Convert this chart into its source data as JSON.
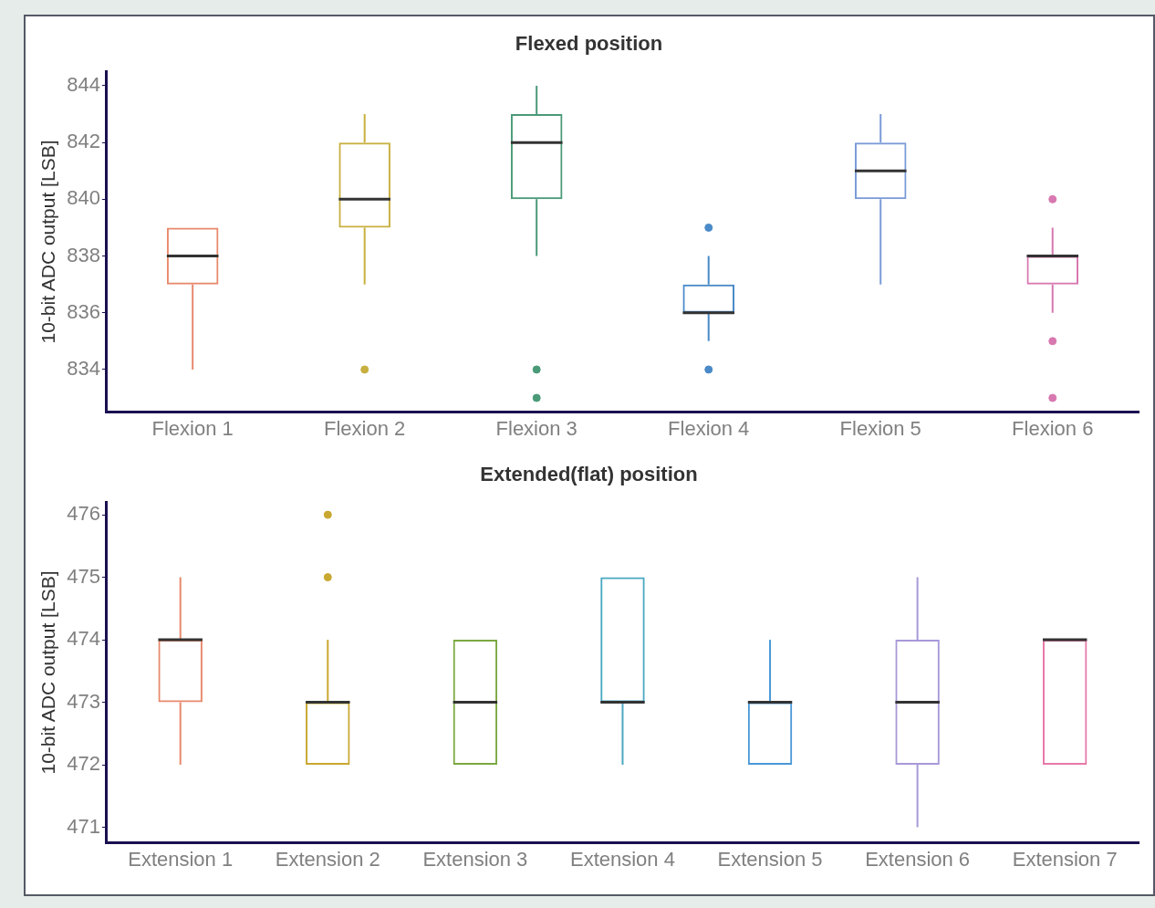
{
  "chart_data": [
    {
      "type": "box",
      "title": "Flexed position",
      "ylabel": "10-bit ADC output [LSB]",
      "categories": [
        "Flexion 1",
        "Flexion 2",
        "Flexion 3",
        "Flexion 4",
        "Flexion 5",
        "Flexion 6"
      ],
      "ylim": [
        832.5,
        844.5
      ],
      "yticks": [
        834,
        836,
        838,
        840,
        842,
        844
      ],
      "grid": false,
      "legend": false,
      "colors": [
        "#e8896c",
        "#c8b040",
        "#4a9a78",
        "#4a8ac8",
        "#7a9ad8",
        "#d878b0"
      ],
      "boxes": [
        {
          "low": 834,
          "q1": 837,
          "median": 838,
          "q3": 839,
          "high": 839
        },
        {
          "low": 837,
          "q1": 839,
          "median": 840,
          "q3": 842,
          "high": 843,
          "outliers": [
            834
          ]
        },
        {
          "low": 838,
          "q1": 840,
          "median": 842,
          "q3": 843,
          "high": 844,
          "outliers": [
            834,
            833
          ]
        },
        {
          "low": 835,
          "q1": 836,
          "median": 836,
          "q3": 837,
          "high": 838,
          "outliers": [
            839,
            834
          ]
        },
        {
          "low": 837,
          "q1": 840,
          "median": 841,
          "q3": 842,
          "high": 843
        },
        {
          "low": 836,
          "q1": 837,
          "median": 838,
          "q3": 838,
          "high": 839,
          "outliers": [
            840,
            835,
            833
          ]
        }
      ]
    },
    {
      "type": "box",
      "title": "Extended(flat) position",
      "ylabel": "10-bit ADC output [LSB]",
      "categories": [
        "Extension 1",
        "Extension 2",
        "Extension 3",
        "Extension 4",
        "Extension 5",
        "Extension 6",
        "Extension 7"
      ],
      "ylim": [
        470.75,
        476.2
      ],
      "yticks": [
        471,
        472,
        473,
        474,
        475,
        476
      ],
      "grid": false,
      "legend": false,
      "colors": [
        "#e8896c",
        "#c8a830",
        "#7aa840",
        "#4aa8c0",
        "#4a98d8",
        "#a898d8",
        "#e878a8"
      ],
      "boxes": [
        {
          "low": 472,
          "q1": 473,
          "median": 474,
          "q3": 474,
          "high": 475
        },
        {
          "low": 472,
          "q1": 472,
          "median": 473,
          "q3": 473,
          "high": 474,
          "outliers": [
            476,
            475
          ]
        },
        {
          "low": 472,
          "q1": 472,
          "median": 473,
          "q3": 474,
          "high": 474
        },
        {
          "low": 472,
          "q1": 473,
          "median": 473,
          "q3": 475,
          "high": 475
        },
        {
          "low": 472,
          "q1": 472,
          "median": 473,
          "q3": 473,
          "high": 474
        },
        {
          "low": 471,
          "q1": 472,
          "median": 473,
          "q3": 474,
          "high": 475
        },
        {
          "low": 472,
          "q1": 472,
          "median": 474,
          "q3": 474,
          "high": 474
        }
      ]
    }
  ]
}
